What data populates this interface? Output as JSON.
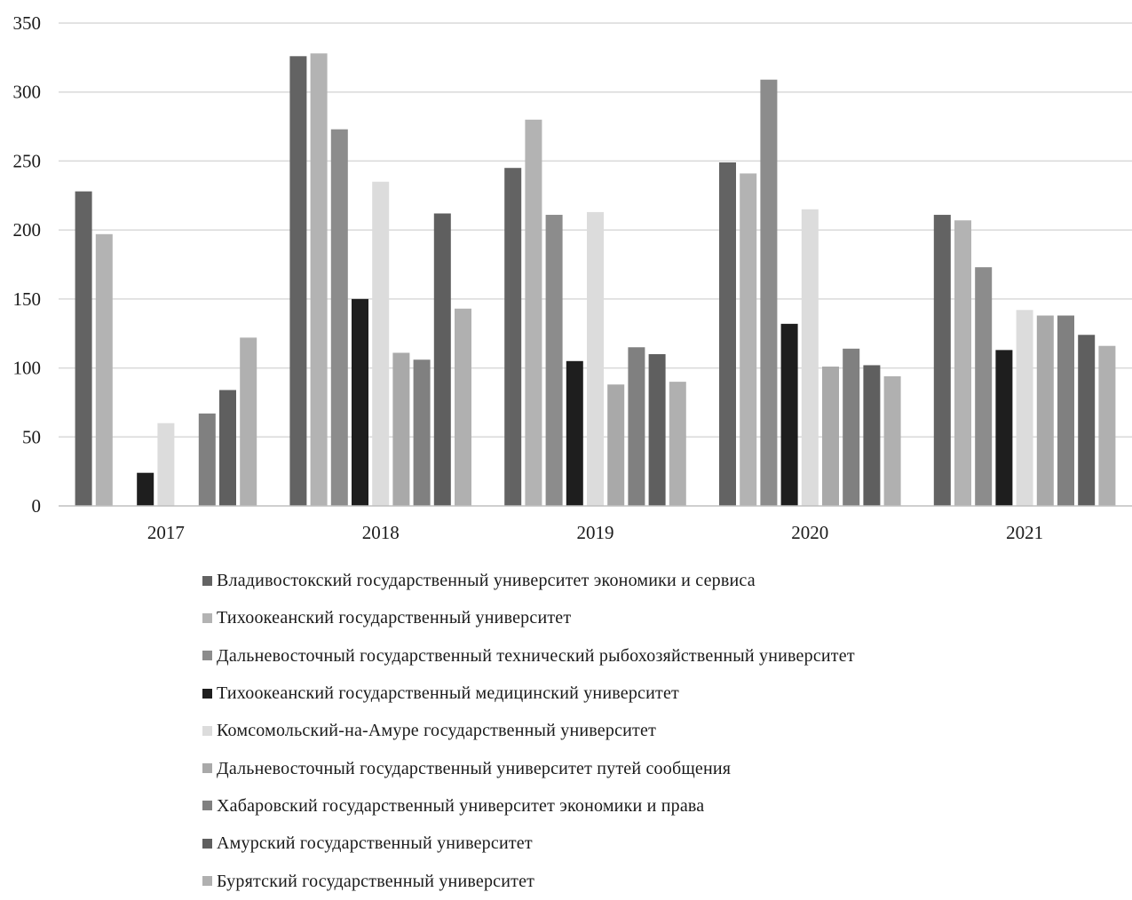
{
  "chart_data": {
    "type": "bar",
    "categories": [
      "2017",
      "2018",
      "2019",
      "2020",
      "2021"
    ],
    "ylim": [
      0,
      350
    ],
    "yticks": [
      0,
      50,
      100,
      150,
      200,
      250,
      300,
      350
    ],
    "grid": true,
    "legend_position": "bottom",
    "series": [
      {
        "name": "Владивостокский государственный университет экономики и сервиса",
        "color": "#636363",
        "values": [
          228,
          326,
          245,
          249,
          211
        ]
      },
      {
        "name": "Тихоокеанский государственный университет",
        "color": "#b3b3b3",
        "values": [
          197,
          328,
          280,
          241,
          207
        ]
      },
      {
        "name": "Дальневосточный государственный технический рыбохозяйственный университет",
        "color": "#8c8c8c",
        "values": [
          null,
          273,
          211,
          309,
          173
        ]
      },
      {
        "name": "Тихоокеанский государственный медицинский университет",
        "color": "#1e1e1e",
        "values": [
          24,
          150,
          105,
          132,
          113
        ]
      },
      {
        "name": "Комсомольский-на-Амуре государственный университет",
        "color": "#dcdcdc",
        "values": [
          60,
          235,
          213,
          215,
          142
        ]
      },
      {
        "name": "Дальневосточный государственный университет путей сообщения",
        "color": "#a9a9a9",
        "values": [
          null,
          111,
          88,
          101,
          138
        ]
      },
      {
        "name": "Хабаровский государственный университет экономики и права",
        "color": "#808080",
        "values": [
          67,
          106,
          115,
          114,
          138
        ]
      },
      {
        "name": "Амурский государственный университет",
        "color": "#5f5f5f",
        "values": [
          84,
          212,
          110,
          102,
          124
        ]
      },
      {
        "name": "Бурятский государственный университет",
        "color": "#b0b0b0",
        "values": [
          122,
          143,
          90,
          94,
          116
        ]
      }
    ]
  }
}
